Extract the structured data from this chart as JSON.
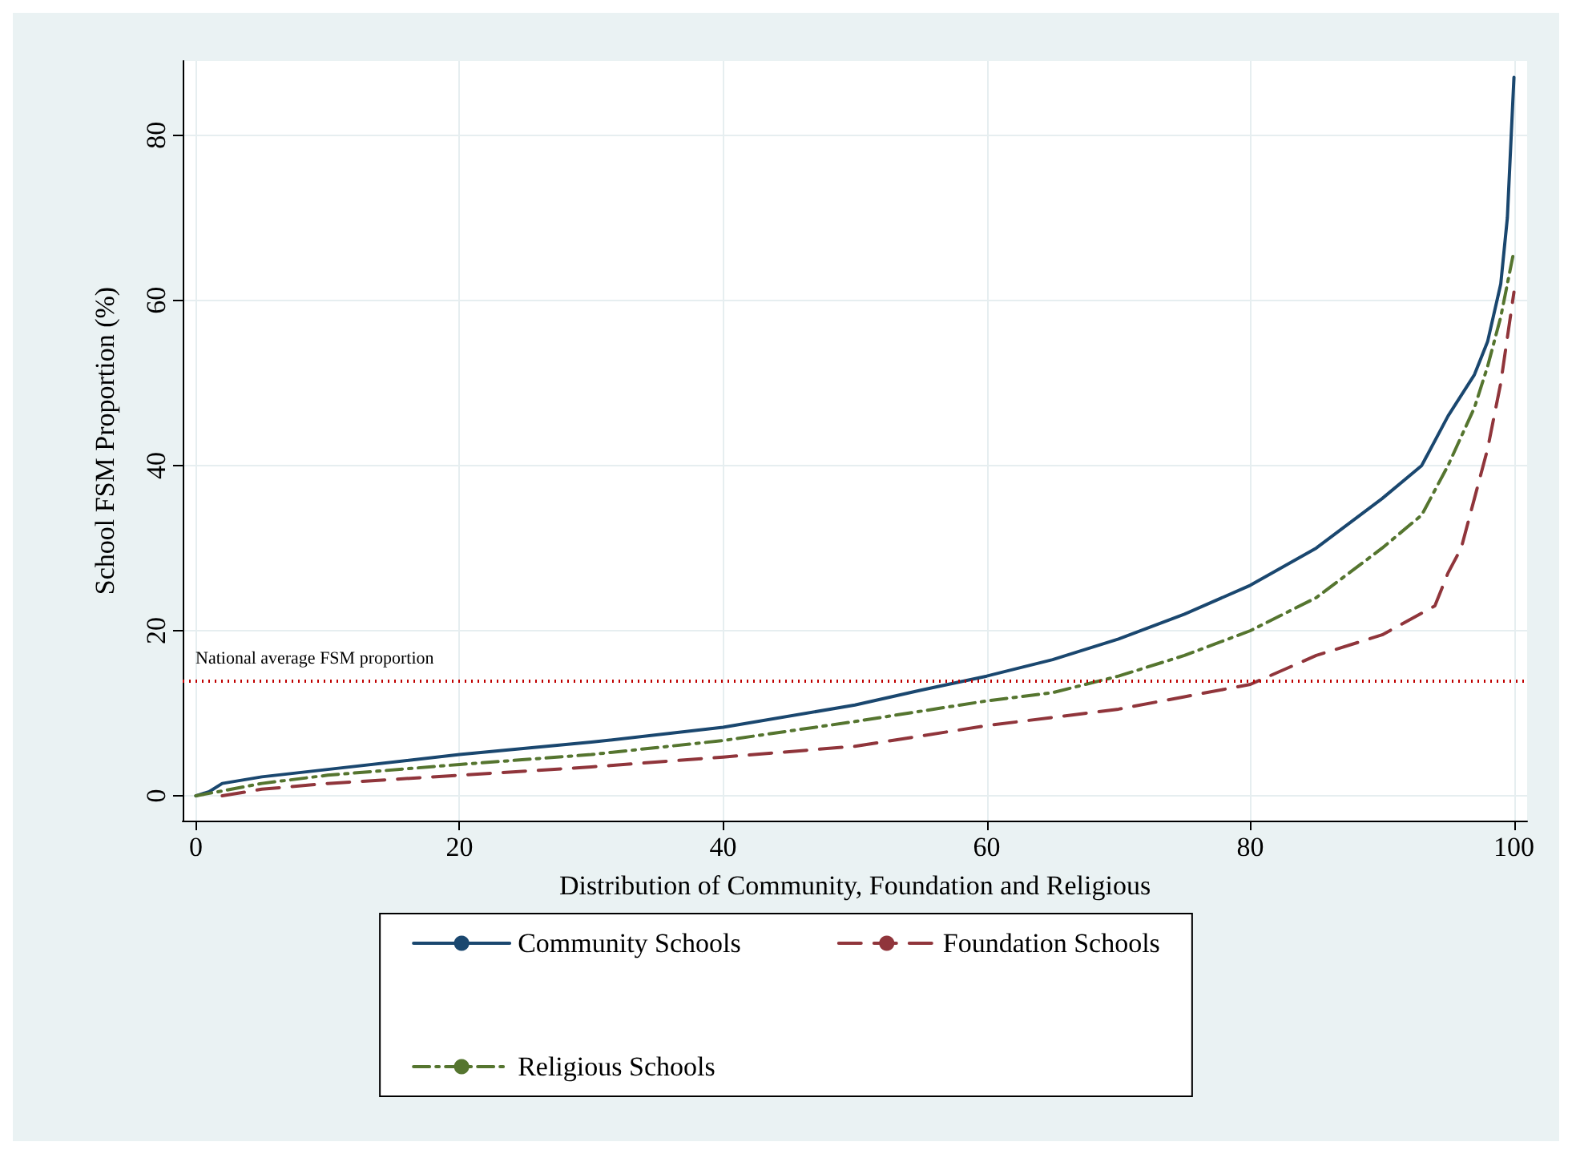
{
  "chart_data": {
    "type": "line",
    "xlabel": "Distribution of Community, Foundation and Religious",
    "ylabel": "School FSM Proportion (%)",
    "xlim": [
      -1,
      101
    ],
    "ylim": [
      -3,
      89
    ],
    "xticks": [
      0,
      20,
      40,
      60,
      80,
      100
    ],
    "yticks": [
      0,
      20,
      40,
      60,
      80
    ],
    "grid": true,
    "legend": "bottom",
    "marker": "none",
    "series": [
      {
        "name": "Community Schools",
        "color": "#1a476f",
        "line_style": "solid",
        "x": [
          0,
          1,
          2,
          5,
          10,
          20,
          30,
          40,
          50,
          55,
          60,
          65,
          70,
          75,
          80,
          85,
          90,
          93,
          95,
          97,
          98,
          99,
          99.5,
          100
        ],
        "values": [
          0,
          0.5,
          1.5,
          2.3,
          3.2,
          5,
          6.5,
          8.3,
          11,
          12.8,
          14.5,
          16.5,
          19,
          22,
          25.5,
          30,
          36,
          40,
          46,
          51,
          55,
          62,
          70,
          87
        ]
      },
      {
        "name": "Foundation Schools",
        "color": "#90353b",
        "line_style": "dashed",
        "x": [
          2,
          5,
          10,
          20,
          30,
          40,
          50,
          60,
          65,
          70,
          75,
          80,
          85,
          90,
          94,
          95,
          96,
          97,
          98,
          99,
          100
        ],
        "values": [
          0,
          0.8,
          1.5,
          2.5,
          3.5,
          4.7,
          6,
          8.5,
          9.5,
          10.5,
          12,
          13.5,
          17,
          19.5,
          23,
          27,
          30,
          36,
          42,
          50,
          61
        ]
      },
      {
        "name": "Religious Schools",
        "color": "#55752f",
        "line_style": "dashdot",
        "x": [
          0,
          5,
          10,
          20,
          30,
          40,
          50,
          60,
          65,
          70,
          75,
          80,
          85,
          90,
          93,
          95,
          97,
          98,
          99,
          100
        ],
        "values": [
          0,
          1.5,
          2.5,
          3.8,
          5,
          6.7,
          9,
          11.5,
          12.5,
          14.5,
          17,
          20,
          24,
          30,
          34,
          40,
          47,
          52,
          58,
          66
        ]
      }
    ],
    "ref_lines": [
      {
        "axis": "y",
        "value": 14,
        "label": "National average FSM proportion",
        "color": "#c00000",
        "line_style": "dotted"
      }
    ]
  }
}
